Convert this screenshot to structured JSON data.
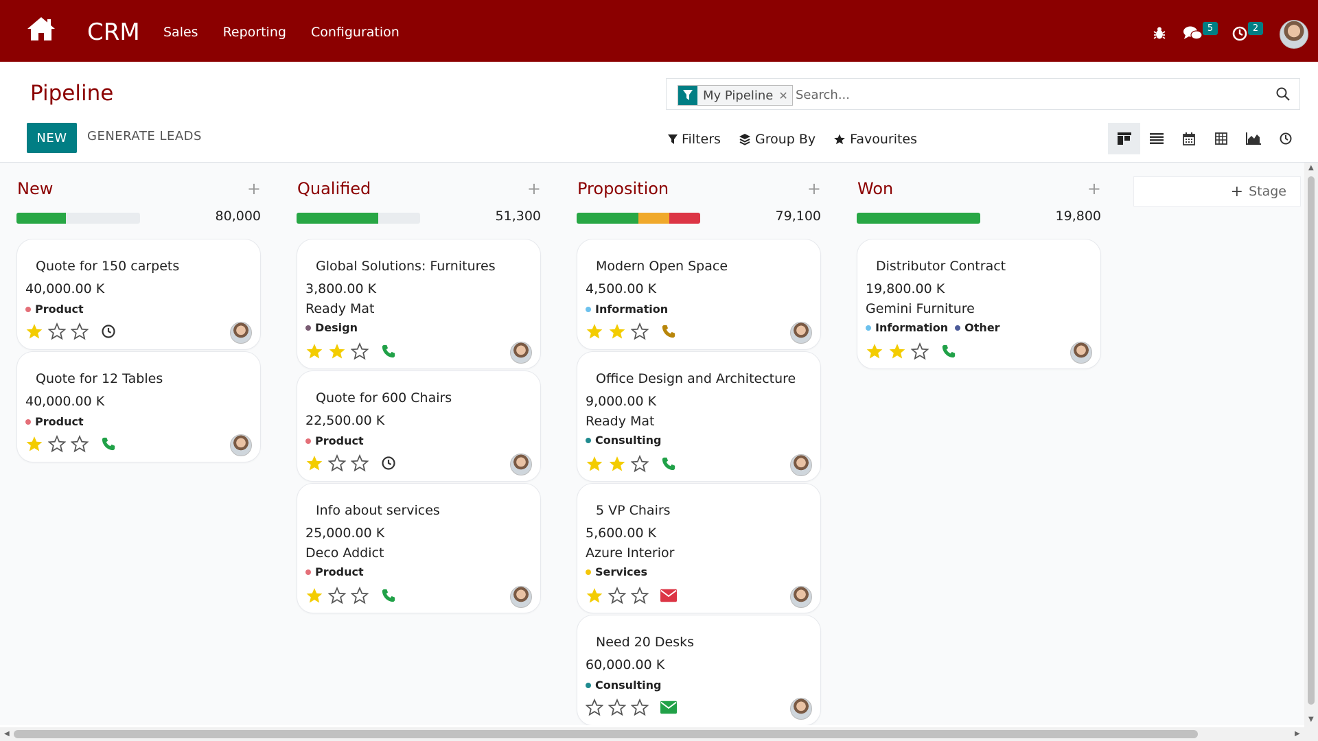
{
  "header": {
    "app_name": "CRM",
    "nav": [
      "Sales",
      "Reporting",
      "Configuration"
    ],
    "messages_badge": "5",
    "activities_badge": "2",
    "brand_color": "#8b0000"
  },
  "control_panel": {
    "title": "Pipeline",
    "new_label": "NEW",
    "generate_label": "GENERATE LEADS",
    "search": {
      "facet_label": "My Pipeline",
      "placeholder": "Search..."
    },
    "filters_label": "Filters",
    "group_by_label": "Group By",
    "favourites_label": "Favourites",
    "views": [
      "kanban-icon",
      "list-icon",
      "calendar-icon",
      "pivot-icon",
      "graph-icon",
      "activity-icon"
    ]
  },
  "add_stage_label": "Stage",
  "columns": [
    {
      "title": "New",
      "total": "80,000",
      "progress": [
        {
          "color": "#28a745",
          "pct": 40
        }
      ],
      "cards": [
        {
          "title": "Quote for 150 carpets",
          "amount": "40,000.00 K",
          "partner": "",
          "tags": [
            {
              "label": "Product",
              "color": "#e46f78"
            }
          ],
          "stars": 1,
          "activity": "clock-icon"
        },
        {
          "title": "Quote for 12 Tables",
          "amount": "40,000.00 K",
          "partner": "",
          "tags": [
            {
              "label": "Product",
              "color": "#e46f78"
            }
          ],
          "stars": 1,
          "activity": "phone-icon"
        }
      ]
    },
    {
      "title": "Qualified",
      "total": "51,300",
      "progress": [
        {
          "color": "#28a745",
          "pct": 66
        }
      ],
      "cards": [
        {
          "title": "Global Solutions: Furnitures",
          "amount": "3,800.00 K",
          "partner": "Ready Mat",
          "tags": [
            {
              "label": "Design",
              "color": "#7a5c73"
            }
          ],
          "stars": 2,
          "activity": "phone-icon"
        },
        {
          "title": "Quote for 600 Chairs",
          "amount": "22,500.00 K",
          "partner": "",
          "tags": [
            {
              "label": "Product",
              "color": "#e46f78"
            }
          ],
          "stars": 1,
          "activity": "clock-icon"
        },
        {
          "title": "Info about services",
          "amount": "25,000.00 K",
          "partner": "Deco Addict",
          "tags": [
            {
              "label": "Product",
              "color": "#e46f78"
            }
          ],
          "stars": 1,
          "activity": "phone-icon"
        }
      ]
    },
    {
      "title": "Proposition",
      "total": "79,100",
      "progress": [
        {
          "color": "#28a745",
          "pct": 50
        },
        {
          "color": "#f0a92b",
          "pct": 25
        },
        {
          "color": "#dc3545",
          "pct": 25
        }
      ],
      "cards": [
        {
          "title": "Modern Open Space",
          "amount": "4,500.00 K",
          "partner": "",
          "tags": [
            {
              "label": "Information",
              "color": "#6cc1ed"
            }
          ],
          "stars": 2,
          "activity": "phone-icon-warning"
        },
        {
          "title": "Office Design and Architecture",
          "amount": "9,000.00 K",
          "partner": "Ready Mat",
          "tags": [
            {
              "label": "Consulting",
              "color": "#1f8b8f"
            }
          ],
          "stars": 2,
          "activity": "phone-icon"
        },
        {
          "title": "5 VP Chairs",
          "amount": "5,600.00 K",
          "partner": "Azure Interior",
          "tags": [
            {
              "label": "Services",
              "color": "#f4c609"
            }
          ],
          "stars": 1,
          "activity": "email-icon-overdue"
        },
        {
          "title": "Need 20 Desks",
          "amount": "60,000.00 K",
          "partner": "",
          "tags": [
            {
              "label": "Consulting",
              "color": "#1f8b8f"
            }
          ],
          "stars": 0,
          "activity": "email-icon"
        }
      ]
    },
    {
      "title": "Won",
      "total": "19,800",
      "progress": [
        {
          "color": "#28a745",
          "pct": 100
        }
      ],
      "cards": [
        {
          "title": "Distributor Contract",
          "amount": "19,800.00 K",
          "partner": "Gemini Furniture",
          "tags": [
            {
              "label": "Information",
              "color": "#6cc1ed"
            },
            {
              "label": "Other",
              "color": "#4c5b99"
            }
          ],
          "stars": 2,
          "activity": "phone-icon"
        }
      ]
    }
  ]
}
